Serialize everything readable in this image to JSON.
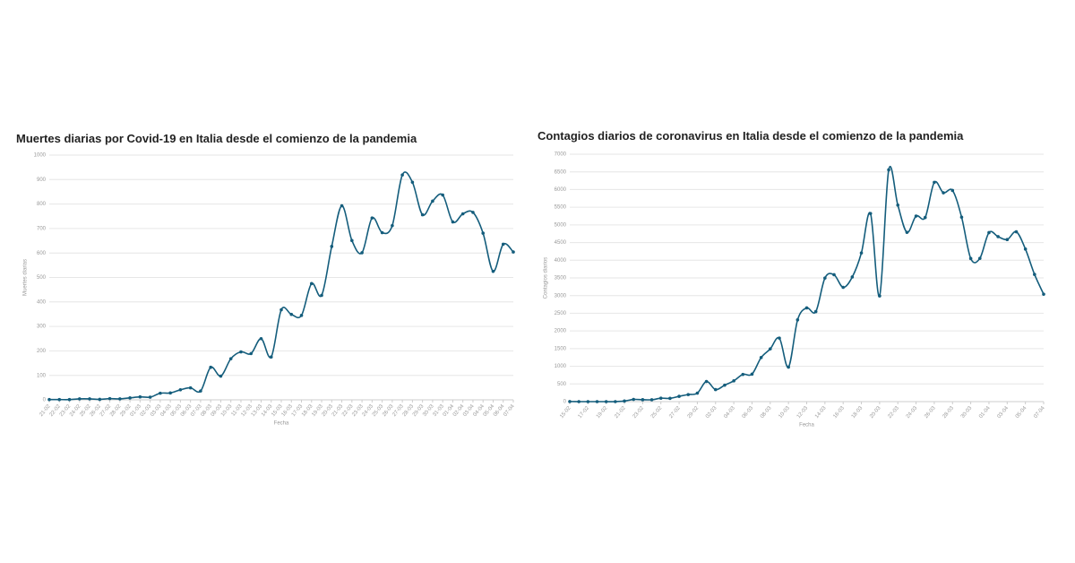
{
  "chart_data": [
    {
      "type": "line",
      "title": "Muertes diarias por Covid-19 en Italia desde el comienzo de la pandemia",
      "x_label": "Fecha",
      "y_label": "Muertes diarias",
      "categories": [
        "21-02",
        "22-02",
        "23-02",
        "24-02",
        "25-02",
        "26-02",
        "27-02",
        "28-02",
        "29-02",
        "01-03",
        "02-03",
        "03-03",
        "04-03",
        "05-03",
        "06-03",
        "07-03",
        "08-03",
        "09-03",
        "10-03",
        "11-03",
        "12-03",
        "13-03",
        "14-03",
        "15-03",
        "16-03",
        "17-03",
        "18-03",
        "19-03",
        "20-03",
        "21-03",
        "22-03",
        "23-03",
        "24-03",
        "25-03",
        "26-03",
        "27-03",
        "28-03",
        "29-03",
        "30-03",
        "31-03",
        "01-04",
        "02-04",
        "03-04",
        "04-04",
        "05-04",
        "06-04",
        "07-04"
      ],
      "values": [
        1,
        1,
        1,
        4,
        4,
        2,
        5,
        4,
        8,
        12,
        11,
        27,
        28,
        41,
        49,
        36,
        133,
        97,
        168,
        196,
        189,
        250,
        175,
        368,
        349,
        345,
        475,
        427,
        627,
        793,
        651,
        601,
        743,
        683,
        712,
        919,
        889,
        756,
        812,
        837,
        727,
        760,
        766,
        681,
        525,
        636,
        604
      ],
      "color": "#145d7c",
      "ylim": [
        0,
        1000
      ],
      "yticks": [
        0,
        100,
        200,
        300,
        400,
        500,
        600,
        700,
        800,
        900,
        1000
      ],
      "grid": true
    },
    {
      "type": "line",
      "title": "Contagios diarios de coronavirus en Italia desde el comienzo de la pandemia",
      "x_label": "Fecha",
      "y_label": "Contagios diarios",
      "categories": [
        "15-02",
        null,
        "17-02",
        null,
        "19-02",
        null,
        "21-02",
        null,
        "23-02",
        null,
        "25-02",
        null,
        "27-02",
        null,
        "29-02",
        null,
        "02-03",
        null,
        "04-03",
        null,
        "06-03",
        null,
        "08-03",
        null,
        "10-03",
        null,
        "12-03",
        null,
        "14-03",
        null,
        "16-03",
        null,
        "18-03",
        null,
        "20-03",
        null,
        "22-03",
        null,
        "24-03",
        null,
        "26-03",
        null,
        "28-03",
        null,
        "30-03",
        null,
        "01-04",
        null,
        "03-04",
        null,
        "05-04",
        null,
        "07-04"
      ],
      "values": [
        3,
        0,
        0,
        0,
        0,
        0,
        17,
        62,
        55,
        53,
        97,
        93,
        150,
        200,
        240,
        570,
        340,
        466,
        587,
        769,
        778,
        1247,
        1492,
        1797,
        977,
        2313,
        2651,
        2547,
        3497,
        3590,
        3233,
        3526,
        4207,
        5322,
        2990,
        6557,
        5560,
        4789,
        5249,
        5210,
        6203,
        5909,
        5974,
        5217,
        4050,
        4053,
        4782,
        4668,
        4585,
        4805,
        4316,
        3599,
        3039
      ],
      "color": "#145d7c",
      "ylim": [
        0,
        7000
      ],
      "yticks": [
        0,
        500,
        1000,
        1500,
        2000,
        2500,
        3000,
        3500,
        4000,
        4500,
        5000,
        5500,
        6000,
        6500,
        7000
      ],
      "grid": true
    }
  ]
}
